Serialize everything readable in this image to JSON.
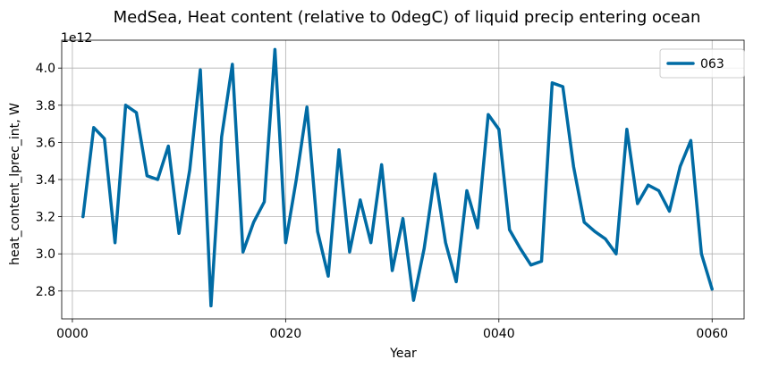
{
  "chart_data": {
    "type": "line",
    "title": "MedSea, Heat content (relative to 0degC) of liquid precip entering ocean",
    "xlabel": "Year",
    "ylabel": "heat_content_lprec_int, W",
    "y_offset_label": "1e12",
    "xlim": [
      -1,
      63
    ],
    "ylim": [
      2.65,
      4.15
    ],
    "x_ticks": [
      0,
      20,
      40,
      60
    ],
    "x_tick_labels": [
      "0000",
      "0020",
      "0040",
      "0060"
    ],
    "y_ticks": [
      2.8,
      3.0,
      3.2,
      3.4,
      3.6,
      3.8,
      4.0
    ],
    "y_tick_labels": [
      "2.8",
      "3.0",
      "3.2",
      "3.4",
      "3.6",
      "3.8",
      "4.0"
    ],
    "grid": true,
    "legend_position": "top-right",
    "series": [
      {
        "name": "063",
        "color": "#006ba4",
        "x": [
          1,
          2,
          3,
          4,
          5,
          6,
          7,
          8,
          9,
          10,
          11,
          12,
          13,
          14,
          15,
          16,
          17,
          18,
          19,
          20,
          21,
          22,
          23,
          24,
          25,
          26,
          27,
          28,
          29,
          30,
          31,
          32,
          33,
          34,
          35,
          36,
          37,
          38,
          39,
          40,
          41,
          42,
          43,
          44,
          45,
          46,
          47,
          48,
          49,
          50,
          51,
          52,
          53,
          54,
          55,
          56,
          57,
          58,
          59,
          60
        ],
        "values": [
          3.2,
          3.68,
          3.62,
          3.06,
          3.8,
          3.76,
          3.42,
          3.4,
          3.58,
          3.11,
          3.45,
          3.99,
          2.72,
          3.63,
          4.02,
          3.01,
          3.17,
          3.28,
          4.1,
          3.06,
          3.4,
          3.79,
          3.12,
          2.88,
          3.56,
          3.01,
          3.29,
          3.06,
          3.48,
          2.91,
          3.19,
          2.75,
          3.03,
          3.43,
          3.06,
          2.85,
          3.34,
          3.14,
          3.75,
          3.67,
          3.13,
          3.03,
          2.94,
          2.96,
          3.92,
          3.9,
          3.47,
          3.17,
          3.12,
          3.08,
          3.0,
          3.67,
          3.27,
          3.37,
          3.34,
          3.23,
          3.47,
          3.61,
          3.0,
          2.81
        ]
      }
    ]
  }
}
